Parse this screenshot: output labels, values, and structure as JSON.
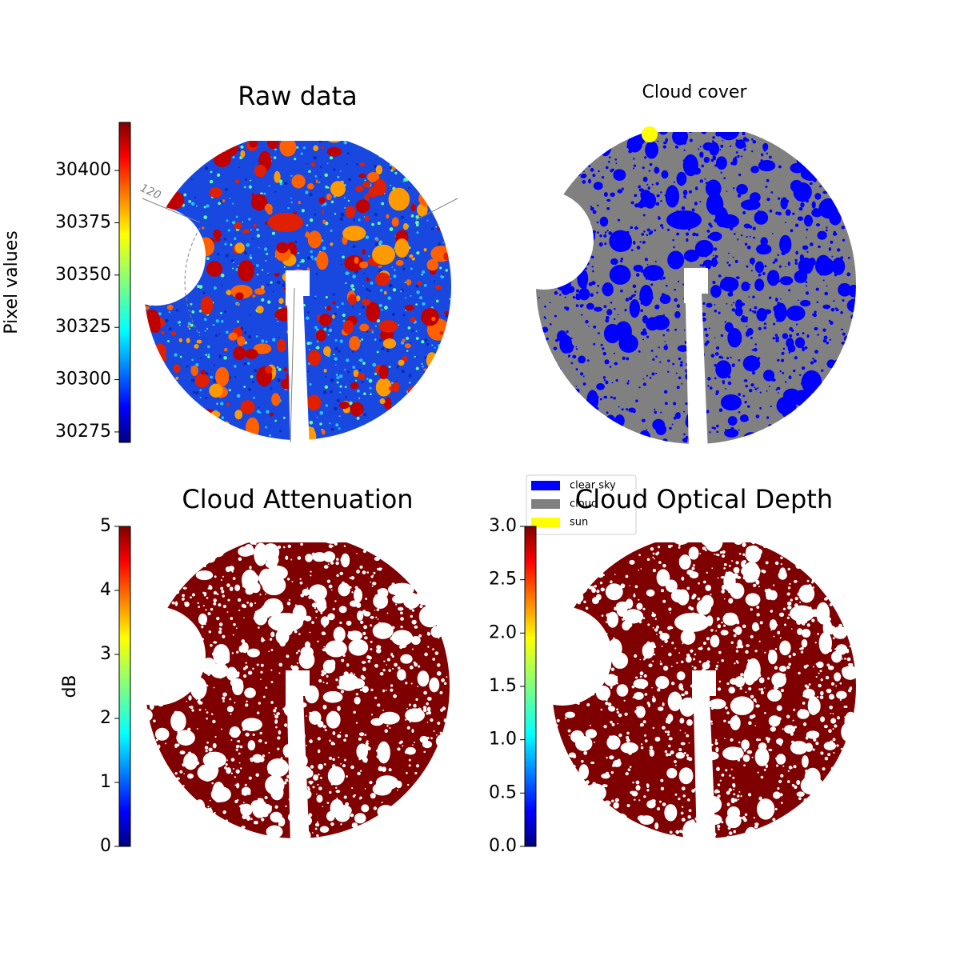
{
  "chart_data": [
    {
      "type": "image",
      "title": "Raw data",
      "colormap": "jet",
      "annotation": "120",
      "colorbar": {
        "label": "Pixel values",
        "ylim": [
          30270,
          30423
        ],
        "yticks": [
          30275,
          30300,
          30325,
          30350,
          30375,
          30400
        ]
      }
    },
    {
      "type": "image",
      "title": "Cloud cover",
      "series": [
        {
          "name": "clear sky",
          "color": "#0000ff"
        },
        {
          "name": "cloud",
          "color": "#808080"
        },
        {
          "name": "sun",
          "color": "#ffff00"
        }
      ]
    },
    {
      "type": "image",
      "title": "Cloud Attenuation",
      "colormap": "jet",
      "colorbar": {
        "label": "dB",
        "ylim": [
          0,
          5
        ],
        "yticks": [
          0,
          1,
          2,
          3,
          4,
          5
        ]
      }
    },
    {
      "type": "image",
      "title": "Cloud Optical Depth",
      "colormap": "jet",
      "colorbar": {
        "ylim": [
          0,
          3
        ],
        "yticks": [
          {
            "value": 0,
            "label": "0.0"
          },
          {
            "value": 0.5,
            "label": "0.5"
          },
          {
            "value": 1,
            "label": "1.0"
          },
          {
            "value": 1.5,
            "label": "1.5"
          },
          {
            "value": 2,
            "label": "2.0"
          },
          {
            "value": 2.5,
            "label": "2.5"
          },
          {
            "value": 3,
            "label": "3.0"
          }
        ]
      }
    }
  ]
}
